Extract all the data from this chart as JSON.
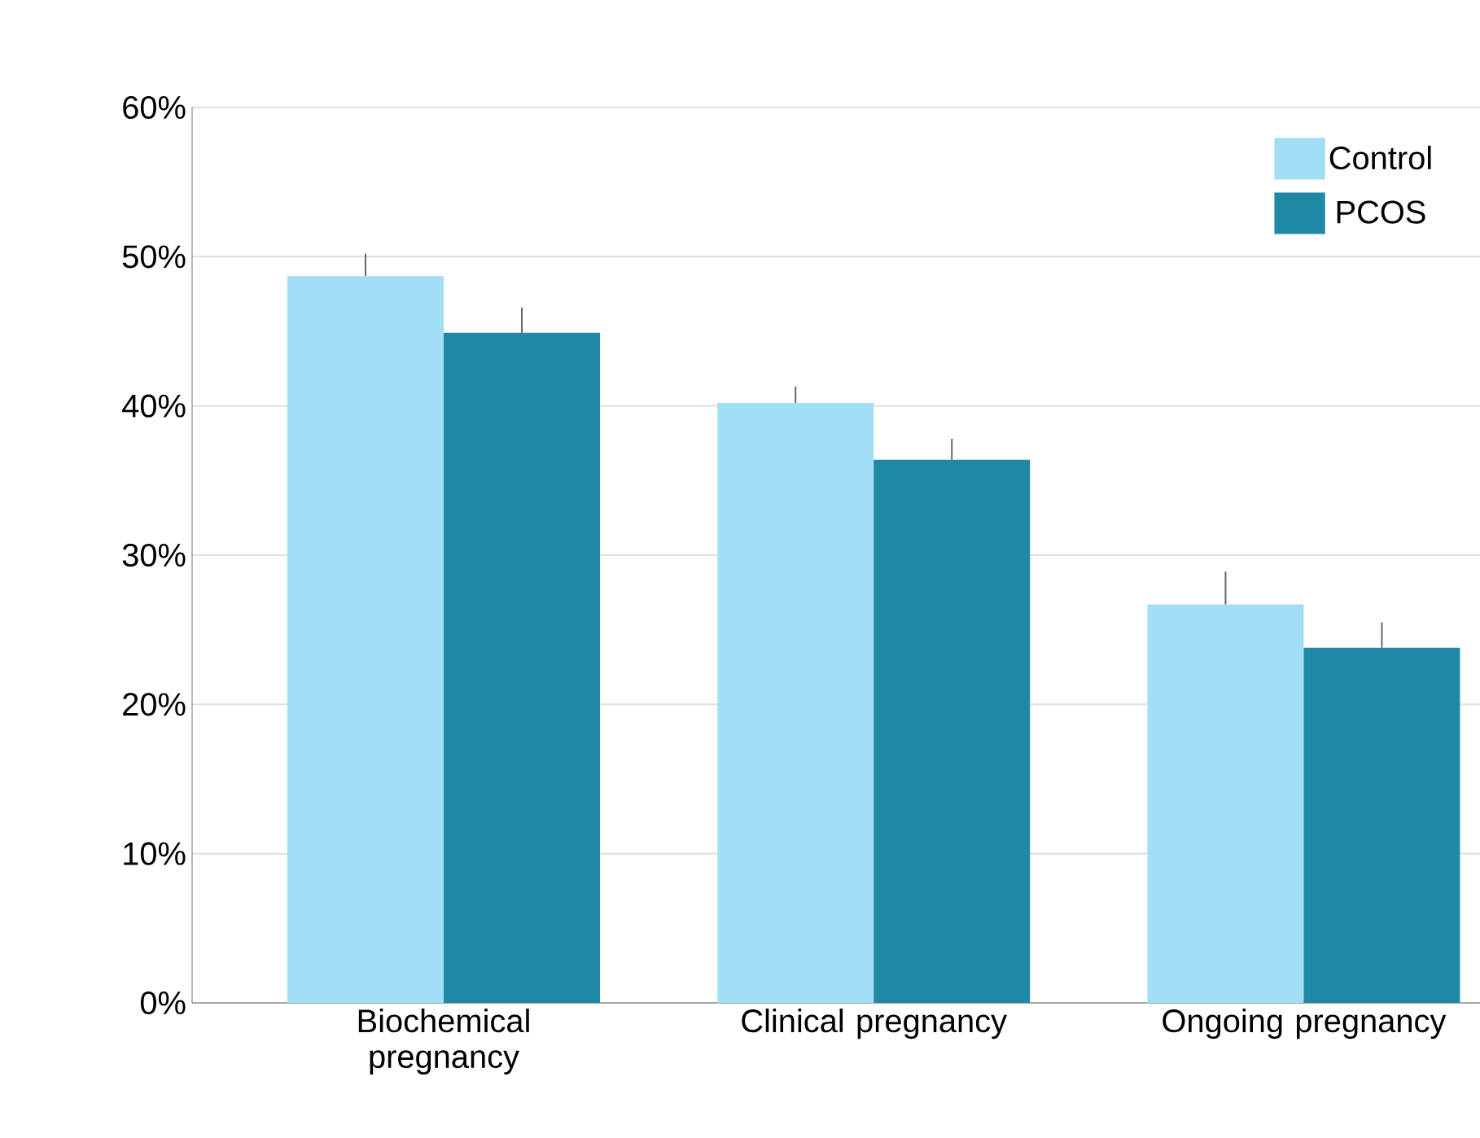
{
  "chart_data": {
    "type": "bar",
    "categories": [
      "Biochemical pregnancy",
      "Clinical pregnancy",
      "Ongoing pregnancy"
    ],
    "series": [
      {
        "name": "Control",
        "color": "#a3def7",
        "values": [
          48.7,
          40.2,
          26.7
        ],
        "errors": [
          [
            48.7,
            50.2
          ],
          [
            40.2,
            41.3
          ],
          [
            26.7,
            28.9
          ]
        ]
      },
      {
        "name": "PCOS",
        "color": "#1f89a5",
        "values": [
          44.9,
          36.4,
          23.8
        ],
        "errors": [
          [
            44.9,
            46.6
          ],
          [
            36.4,
            37.8
          ],
          [
            23.8,
            25.5
          ]
        ]
      }
    ],
    "ylim": [
      0,
      60
    ],
    "yticks": [
      {
        "value": 0,
        "label": "0%"
      },
      {
        "value": 10,
        "label": "10%"
      },
      {
        "value": 20,
        "label": "20%"
      },
      {
        "value": 30,
        "label": "30%"
      },
      {
        "value": 40,
        "label": "40%"
      },
      {
        "value": 50,
        "label": "50%"
      },
      {
        "value": 60,
        "label": "60%"
      }
    ],
    "grid": "y",
    "legend": "top right"
  }
}
